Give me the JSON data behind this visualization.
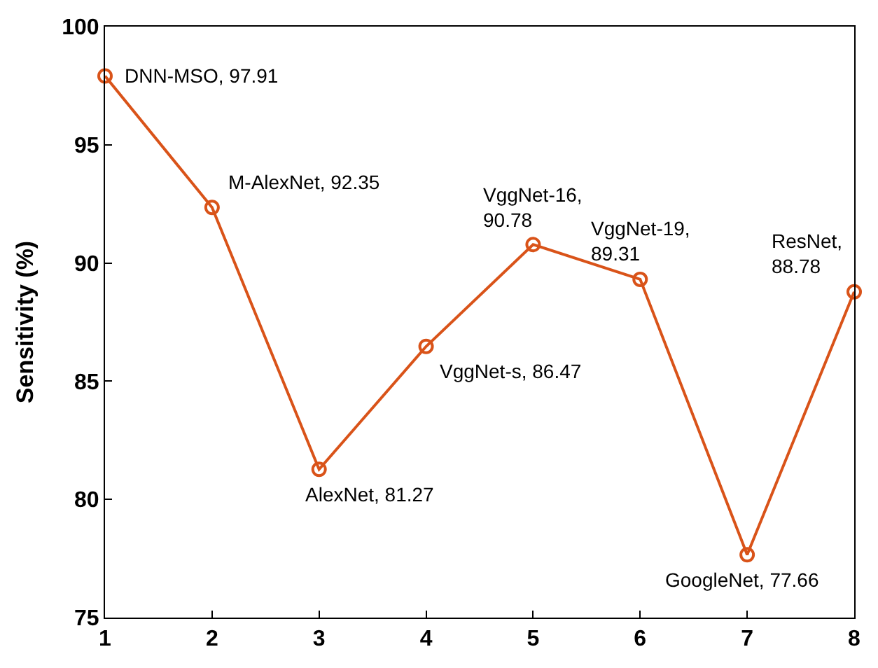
{
  "chart_data": {
    "type": "line",
    "ylabel": "Sensitivity (%)",
    "x": [
      1,
      2,
      3,
      4,
      5,
      6,
      7,
      8
    ],
    "series": [
      {
        "color": "#d95319",
        "values": [
          97.91,
          92.35,
          81.27,
          86.47,
          90.78,
          89.31,
          77.66,
          88.78
        ]
      }
    ],
    "xlim": [
      1,
      8
    ],
    "xticks": [
      1,
      2,
      3,
      4,
      5,
      6,
      7,
      8
    ],
    "ylim": [
      75,
      100
    ],
    "yticks": [
      75,
      80,
      85,
      90,
      95,
      100
    ],
    "marker": "circle",
    "line_style": "solid",
    "annotations": [
      {
        "text": "DNN-MSO, 97.91",
        "x": 1,
        "y": 97.91
      },
      {
        "text": "M-AlexNet, 92.35",
        "x": 2,
        "y": 92.35
      },
      {
        "text": "AlexNet, 81.27",
        "x": 3,
        "y": 81.27
      },
      {
        "text": "VggNet-s, 86.47",
        "x": 4,
        "y": 86.47
      },
      {
        "text": "VggNet-16,\n90.78",
        "x": 5,
        "y": 90.78
      },
      {
        "text": "VggNet-19,\n89.31",
        "x": 6,
        "y": 89.31
      },
      {
        "text": "GoogleNet, 77.66",
        "x": 7,
        "y": 77.66
      },
      {
        "text": "ResNet,\n88.78",
        "x": 8,
        "y": 88.78
      }
    ]
  }
}
